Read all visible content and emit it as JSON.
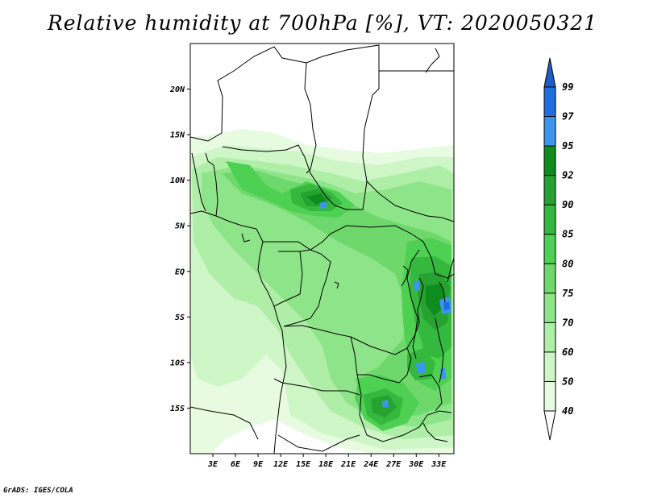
{
  "title": "Relative humidity at 700hPa [%], VT: 2020050321",
  "credit": "GrADS: IGES/COLA",
  "map": {
    "lon_range": [
      0,
      35
    ],
    "lat_range": [
      -20,
      25
    ],
    "lat_ticks": [
      {
        "value": 20,
        "label": "20N"
      },
      {
        "value": 15,
        "label": "15N"
      },
      {
        "value": 10,
        "label": "10N"
      },
      {
        "value": 5,
        "label": "5N"
      },
      {
        "value": 0,
        "label": "EQ"
      },
      {
        "value": -5,
        "label": "5S"
      },
      {
        "value": -10,
        "label": "10S"
      },
      {
        "value": -15,
        "label": "15S"
      }
    ],
    "lon_ticks": [
      {
        "value": 3,
        "label": "3E"
      },
      {
        "value": 6,
        "label": "6E"
      },
      {
        "value": 9,
        "label": "9E"
      },
      {
        "value": 12,
        "label": "12E"
      },
      {
        "value": 15,
        "label": "15E"
      },
      {
        "value": 18,
        "label": "18E"
      },
      {
        "value": 21,
        "label": "21E"
      },
      {
        "value": 24,
        "label": "24E"
      },
      {
        "value": 27,
        "label": "27E"
      },
      {
        "value": 30,
        "label": "30E"
      },
      {
        "value": 33,
        "label": "33E"
      }
    ]
  },
  "colorbar": {
    "levels": [
      {
        "label": "99",
        "color": "#1e5cc8"
      },
      {
        "label": "97",
        "color": "#1f6fe0"
      },
      {
        "label": "95",
        "color": "#3c96f0"
      },
      {
        "label": "92",
        "color": "#0f8c1e"
      },
      {
        "label": "90",
        "color": "#25a230"
      },
      {
        "label": "85",
        "color": "#35b83e"
      },
      {
        "label": "80",
        "color": "#4ed052"
      },
      {
        "label": "75",
        "color": "#6ed86c"
      },
      {
        "label": "70",
        "color": "#8ee488"
      },
      {
        "label": "60",
        "color": "#aeeea6"
      },
      {
        "label": "50",
        "color": "#cef6c6"
      },
      {
        "label": "40",
        "color": "#e6fbe0"
      }
    ],
    "top_color": "#1e5cc8",
    "bottom_color": "#ffffff"
  }
}
